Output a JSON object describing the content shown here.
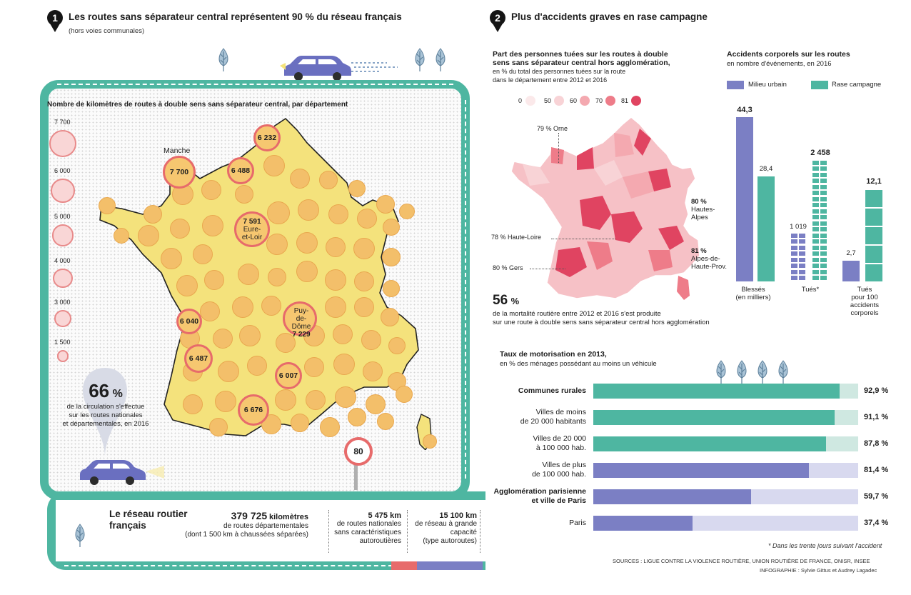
{
  "section1": {
    "number": "1",
    "title": "Les routes sans séparateur central représentent  90 % du réseau français",
    "subtitle": "(hors voies communales)",
    "map_title": "Nombre de kilomètres de routes à double sens sans séparateur central, par département",
    "legend": [
      {
        "label": "7 700",
        "value": 7700
      },
      {
        "label": "6 000",
        "value": 6000
      },
      {
        "label": "5 000",
        "value": 5000
      },
      {
        "label": "4 000",
        "value": 4000
      },
      {
        "label": "3 000",
        "value": 3000
      },
      {
        "label": "1 500",
        "value": 1500
      }
    ],
    "callouts": {
      "manche_name": "Manche",
      "manche_val": "7 700",
      "v6232": "6 232",
      "v6488": "6 488",
      "eure_val": "7 591",
      "eure_name1": "Eure-",
      "eure_name2": "et-Loir",
      "puy_name1": "Puy-",
      "puy_name2": "de-Dôme",
      "puy_val": "7 229",
      "v6040": "6 040",
      "v6487": "6 487",
      "v6007": "6 007",
      "v6676": "6 676"
    },
    "pct_value": "66",
    "pct_sign": "%",
    "pct_text1": "de la circulation s'effectue",
    "pct_text2": "sur les routes nationales",
    "pct_text3": "et départementales, en 2016",
    "speed_sign": "80",
    "network_title1": "Le réseau routier",
    "network_title2": "français",
    "km1_value": "379 725",
    "km1_unit": "kilomètres",
    "km1_text1": "de routes départementales",
    "km1_text2": "(dont 1 500 km à chaussées séparées)",
    "km2_value": "5 475 km",
    "km2_text1": "de routes nationales",
    "km2_text2": "sans caractéristiques",
    "km2_text3": "autoroutières",
    "km3_value": "15 100 km",
    "km3_text1": "de réseau à grande",
    "km3_text2": "capacité",
    "km3_text3": "(type autoroutes)"
  },
  "section2": {
    "number": "2",
    "title": "Plus d'accidents graves en rase campagne",
    "map_title1": "Part des personnes tuées sur les routes à double",
    "map_title2": "sens sans séparateur central hors agglomération,",
    "map_sub1": "en % du total des personnes tuées sur la route",
    "map_sub2": "dans le département entre 2012 et 2016",
    "scale": [
      {
        "label": "0",
        "color": "#fbe9ea"
      },
      {
        "label": "50",
        "color": "#f8d3d6"
      },
      {
        "label": "60",
        "color": "#f4a9b0"
      },
      {
        "label": "70",
        "color": "#ee7c89"
      },
      {
        "label": "81",
        "color": "#e04461"
      }
    ],
    "ann_orne": "79 % Orne",
    "ann_haute_loire": "78 % Haute-Loire",
    "ann_gers": "80 % Gers",
    "ann_ha_val": "80 %",
    "ann_ha_name1": "Hautes-",
    "ann_ha_name2": "Alpes",
    "ann_ahp_val": "81 %",
    "ann_ahp_name1": "Alpes-de-",
    "ann_ahp_name2": "Haute-Prov.",
    "stat_value": "56",
    "stat_pct": "%",
    "stat_text1": "de la mortalité routière entre 2012 et 2016 s'est produite",
    "stat_text2": "sur une route à double sens sans séparateur central hors agglomération",
    "acc_title": "Accidents corporels sur les routes",
    "acc_sub": "en nombre d'événements, en 2016",
    "acc_legend_urban": "Milieu urbain",
    "acc_legend_rural": "Rase campagne",
    "acc_cat1": "Blessés",
    "acc_cat1b": "(en milliers)",
    "acc_cat2": "Tués*",
    "acc_cat3a": "Tués",
    "acc_cat3b": "pour 100",
    "acc_cat3c": "accidents",
    "acc_cat3d": "corporels",
    "moto_title": "Taux de motorisation en 2013,",
    "moto_sub": "en % des ménages possédant au moins un véhicule",
    "footnote": "* Dans les trente jours suivant l'accident",
    "sources": "SOURCES : LIGUE CONTRE LA VIOLENCE ROUTIÈRE, UNION ROUTIÈRE DE FRANCE, ONISR, INSEE",
    "credits": "INFOGRAPHIE : Sylvie Gittus et Audrey Lagadec"
  },
  "colors": {
    "urban": "#7b7fc4",
    "rural": "#4eb6a1",
    "urban_light": "#d8d9ef",
    "rural_light": "#cfe8e1",
    "road": "#4eb6a1",
    "car": "#6a6fc0"
  },
  "chart_data": [
    {
      "type": "bar",
      "title": "Accidents corporels sur les routes",
      "subtitle": "en nombre d'événements, en 2016",
      "categories": [
        "Blessés (en milliers)",
        "Tués*",
        "Tués pour 100 accidents corporels"
      ],
      "series": [
        {
          "name": "Milieu urbain",
          "values": [
            44.3,
            1019,
            2.7
          ],
          "labels": [
            "44,3",
            "1 019",
            "2,7"
          ]
        },
        {
          "name": "Rase campagne",
          "values": [
            28.4,
            2458,
            12.1
          ],
          "labels": [
            "28,4",
            "2 458",
            "12,1"
          ]
        }
      ]
    },
    {
      "type": "bar",
      "title": "Taux de motorisation en 2013,",
      "subtitle": "en % des ménages possédant au moins un véhicule",
      "categories": [
        "Communes rurales",
        "Villes de moins de 20 000 habitants",
        "Villes de 20 000 à 100 000 hab.",
        "Villes de plus de 100 000 hab.",
        "Agglomération parisienne et ville de Paris",
        "Paris"
      ],
      "rows": [
        {
          "line1": "Communes rurales",
          "line2": "",
          "bold": true,
          "value": 92.9,
          "label": "92,9 %",
          "group": "rural"
        },
        {
          "line1": "Villes de moins",
          "line2": "de 20 000 habitants",
          "bold": false,
          "value": 91.1,
          "label": "91,1 %",
          "group": "rural"
        },
        {
          "line1": "Villes de 20 000",
          "line2": "à 100 000 hab.",
          "bold": false,
          "value": 87.8,
          "label": "87,8 %",
          "group": "rural"
        },
        {
          "line1": "Villes de plus",
          "line2": "de 100 000 hab.",
          "bold": false,
          "value": 81.4,
          "label": "81,4 %",
          "group": "urban"
        },
        {
          "line1": "Agglomération parisienne",
          "line2": "et ville de Paris",
          "bold": true,
          "value": 59.7,
          "label": "59,7 %",
          "group": "urban"
        },
        {
          "line1": "Paris",
          "line2": "",
          "bold": false,
          "value": 37.4,
          "label": "37,4 %",
          "group": "urban"
        }
      ],
      "ylim": [
        0,
        100
      ]
    }
  ]
}
